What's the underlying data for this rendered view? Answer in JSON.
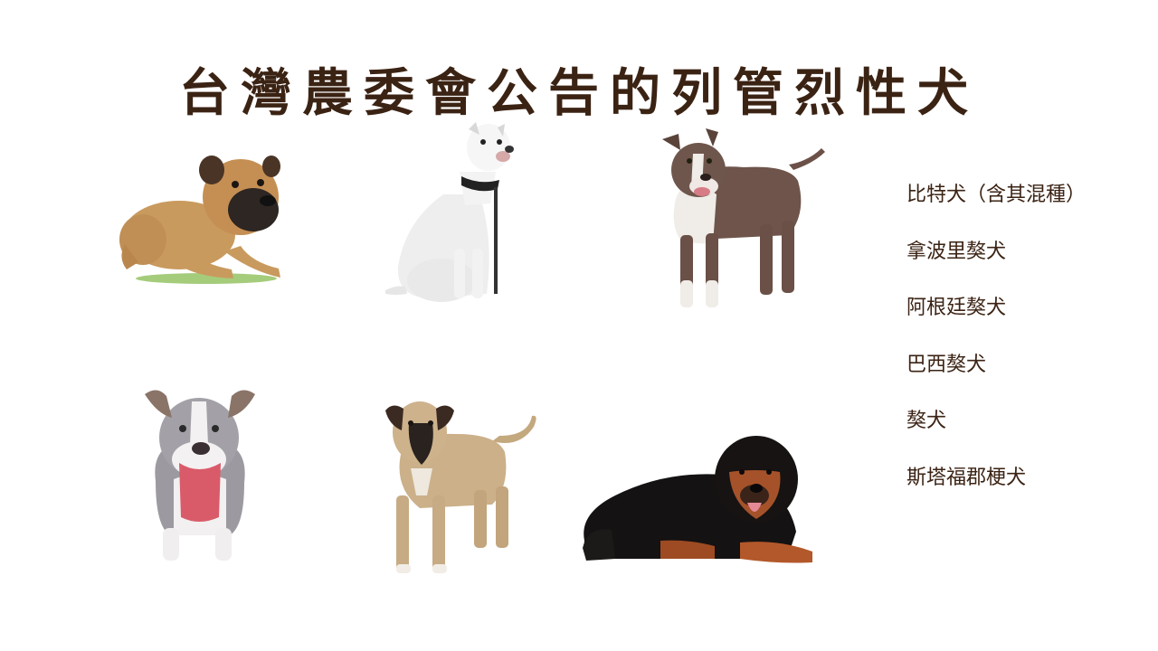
{
  "title": "台灣農委會公告的列管烈性犬",
  "breeds": [
    "比特犬（含其混種）",
    "拿波里獒犬",
    "阿根廷獒犬",
    "巴西獒犬",
    "獒犬",
    "斯塔福郡梗犬"
  ],
  "photos": [
    {
      "subject": "bullmastiff-lying-photo"
    },
    {
      "subject": "dogo-argentino-sitting-photo"
    },
    {
      "subject": "pit-bull-standing-photo"
    },
    {
      "subject": "pit-bull-head-photo"
    },
    {
      "subject": "fila-brasileiro-standing-photo"
    },
    {
      "subject": "tibetan-mastiff-lying-photo"
    }
  ],
  "colors": {
    "title": "#3b2314",
    "text": "#3b2314",
    "background": "#ffffff"
  }
}
